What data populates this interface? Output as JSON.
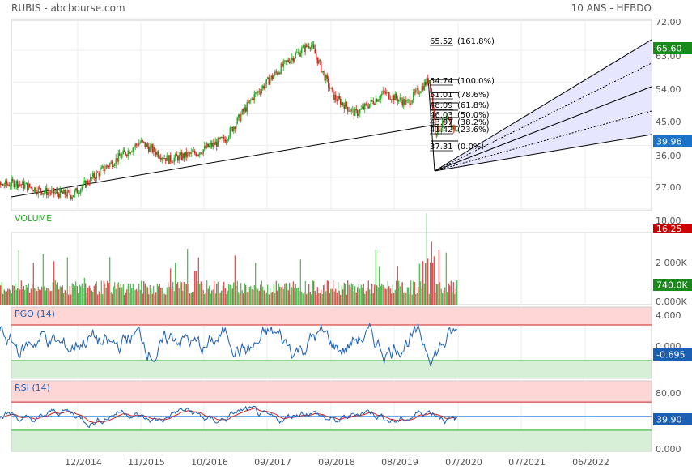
{
  "header": {
    "title": "RUBIS - abcbourse.com",
    "period": "10 ANS - HEBDO"
  },
  "colors": {
    "up": "#22aa22",
    "down": "#cc2222",
    "trendline": "#000000",
    "fib_fill": "#e6e6ff",
    "price_badge": "#1a73c8",
    "high_badge": "#1a8a1a",
    "low_badge": "#cc0000",
    "volume_badge": "#1a8a1a",
    "pgo_line": "#1a5fb4",
    "pgo_badge": "#1a5fb4",
    "rsi_line": "#1a5fb4",
    "rsi_signal": "#cc2222",
    "rsi_badge": "#1a5fb4",
    "overbought_fill": "#ffd6d6",
    "oversold_fill": "#d6efd6"
  },
  "chart_data": {
    "type": "candlestick",
    "x_ticks": [
      "12/2014",
      "11/2015",
      "10/2016",
      "09/2017",
      "09/2018",
      "08/2019",
      "07/2020",
      "07/2021",
      "06/2022"
    ],
    "panels": {
      "price": {
        "y_ticks": [
          "72.00",
          "63.00",
          "54.00",
          "45.00",
          "36.00",
          "27.00",
          "18.00"
        ],
        "ylim": [
          18,
          72
        ],
        "badges": {
          "last": "39.96",
          "high": "65.60",
          "low": "16.25"
        },
        "ohlc_anchors": [
          {
            "date": "2013-07",
            "close": 23.5
          },
          {
            "date": "2014-01",
            "close": 25.5
          },
          {
            "date": "2014-06",
            "close": 23.0
          },
          {
            "date": "2014-11",
            "close": 22.0
          },
          {
            "date": "2015-05",
            "close": 30.0
          },
          {
            "date": "2015-11",
            "close": 37.0
          },
          {
            "date": "2016-04",
            "close": 32.0
          },
          {
            "date": "2016-09",
            "close": 34.0
          },
          {
            "date": "2017-02",
            "close": 38.0
          },
          {
            "date": "2017-07",
            "close": 50.0
          },
          {
            "date": "2018-01",
            "close": 60.0
          },
          {
            "date": "2018-05",
            "close": 65.0
          },
          {
            "date": "2018-09",
            "close": 50.0
          },
          {
            "date": "2019-01",
            "close": 45.0
          },
          {
            "date": "2019-06",
            "close": 51.0
          },
          {
            "date": "2019-10",
            "close": 48.0
          },
          {
            "date": "2020-02",
            "close": 55.0
          },
          {
            "date": "2020-03",
            "close": 40.0
          },
          {
            "date": "2020-05",
            "close": 43.0
          },
          {
            "date": "2020-07",
            "close": 39.96
          }
        ],
        "fibonacci": [
          {
            "value": "65.52",
            "label": "(161.8%)"
          },
          {
            "value": "54.74",
            "label": "(100.0%)"
          },
          {
            "value": "51.01",
            "label": "(78.6%)"
          },
          {
            "value": "48.09",
            "label": "(61.8%)"
          },
          {
            "value": "46.03",
            "label": "(50.0%)"
          },
          {
            "value": "43.97",
            "label": "(38.2%)"
          },
          {
            "value": "41.42",
            "label": "(23.6%)"
          },
          {
            "value": "37.31",
            "label": "(0.0%)"
          }
        ]
      },
      "volume": {
        "title": "VOLUME",
        "y_ticks": [
          "2 000K",
          "0.000K"
        ],
        "badge": "740.0K"
      },
      "pgo": {
        "title": "PGO (14)",
        "y_ticks": [
          "4.000",
          "0.000"
        ],
        "badge": "-0.695",
        "ylim": [
          -6,
          6
        ],
        "bands": [
          3.0,
          -3.0
        ]
      },
      "rsi": {
        "title": "RSI (14)",
        "y_ticks": [
          "80.00",
          "0.000"
        ],
        "badge": "39.90",
        "ylim": [
          0,
          100
        ],
        "bands": [
          70,
          30
        ]
      }
    }
  }
}
